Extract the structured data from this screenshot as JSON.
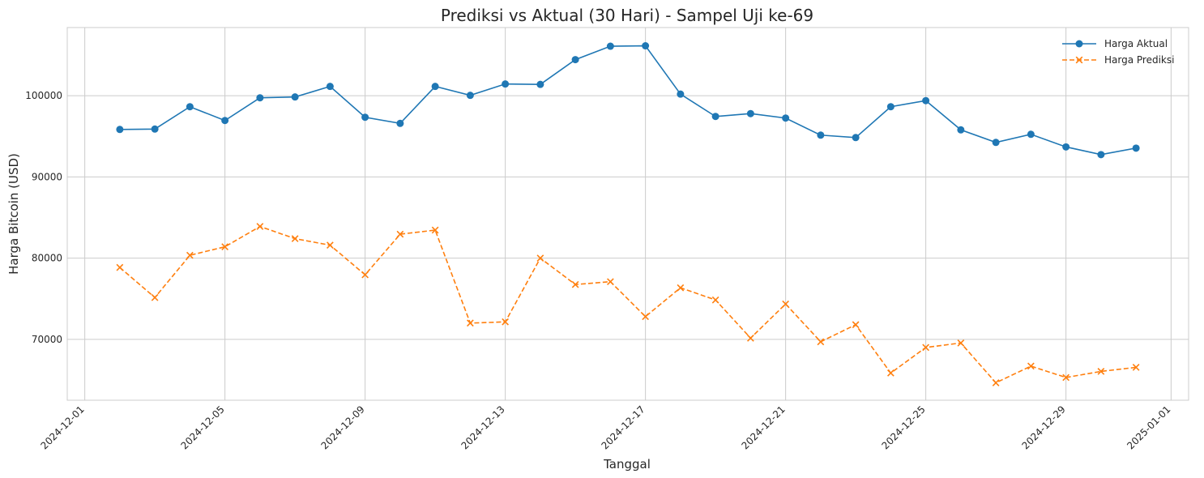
{
  "chart_data": {
    "type": "line",
    "title": "Prediksi vs Aktual (30 Hari) - Sampel Uji ke-69",
    "xlabel": "Tanggal",
    "ylabel": "Harga Bitcoin (USD)",
    "grid": true,
    "legend_position": "top-right",
    "xlim": [
      "2024-11-30T12:00",
      "2025-01-01T12:00"
    ],
    "ylim": [
      62500,
      108400
    ],
    "x_ticks": [
      "2024-12-01",
      "2024-12-05",
      "2024-12-09",
      "2024-12-13",
      "2024-12-17",
      "2024-12-21",
      "2024-12-25",
      "2024-12-29",
      "2025-01-01"
    ],
    "y_ticks": [
      70000,
      80000,
      90000,
      100000
    ],
    "x": [
      "2024-12-02",
      "2024-12-03",
      "2024-12-04",
      "2024-12-05",
      "2024-12-06",
      "2024-12-07",
      "2024-12-08",
      "2024-12-09",
      "2024-12-10",
      "2024-12-11",
      "2024-12-12",
      "2024-12-13",
      "2024-12-14",
      "2024-12-15",
      "2024-12-16",
      "2024-12-17",
      "2024-12-18",
      "2024-12-19",
      "2024-12-20",
      "2024-12-21",
      "2024-12-22",
      "2024-12-23",
      "2024-12-24",
      "2024-12-25",
      "2024-12-26",
      "2024-12-27",
      "2024-12-28",
      "2024-12-29",
      "2024-12-30",
      "2024-12-31"
    ],
    "series": [
      {
        "name": "Harga Aktual",
        "color": "#1f77b4",
        "marker": "circle",
        "linestyle": "solid",
        "values": [
          95850,
          95900,
          98650,
          96950,
          99750,
          99850,
          101150,
          97350,
          96600,
          101150,
          100050,
          101450,
          101400,
          104450,
          106100,
          106150,
          100200,
          97450,
          97800,
          97250,
          95150,
          94850,
          98650,
          99400,
          95800,
          94250,
          95250,
          93700,
          92750,
          93550
        ]
      },
      {
        "name": "Harga Prediksi",
        "color": "#ff7f0e",
        "marker": "x",
        "linestyle": "dashed",
        "values": [
          78850,
          75150,
          80350,
          81400,
          83900,
          82400,
          81600,
          77950,
          82950,
          83450,
          72000,
          72150,
          80000,
          76750,
          77100,
          72800,
          76350,
          74850,
          70150,
          74350,
          69700,
          71800,
          65850,
          69000,
          69550,
          64650,
          66700,
          65300,
          66050,
          66550
        ]
      }
    ]
  }
}
